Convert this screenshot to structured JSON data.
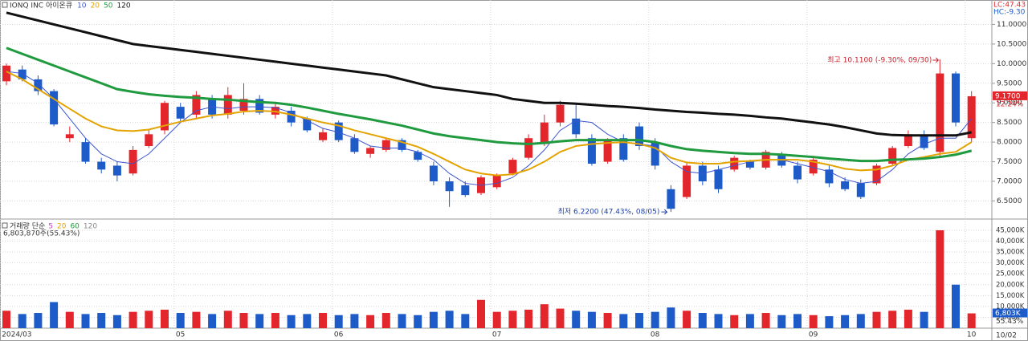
{
  "chart_data": [
    {
      "type": "candlestick",
      "title": "IONQ INC  아이온큐",
      "lc": "LC:47.43",
      "hc": "HC:-9.30",
      "up_color": "#e3262c",
      "down_color": "#1d5bc9",
      "categories": [
        "2024/03",
        null,
        null,
        null,
        null,
        null,
        null,
        null,
        null,
        null,
        null,
        "05",
        null,
        null,
        null,
        null,
        null,
        null,
        null,
        null,
        null,
        "06",
        null,
        null,
        null,
        null,
        null,
        null,
        null,
        null,
        null,
        "07",
        null,
        null,
        null,
        null,
        null,
        null,
        null,
        null,
        null,
        "08",
        null,
        null,
        null,
        null,
        null,
        null,
        null,
        null,
        null,
        "09",
        null,
        null,
        null,
        null,
        null,
        null,
        null,
        null,
        null,
        "10"
      ],
      "open": [
        9.55,
        9.85,
        9.6,
        9.3,
        8.1,
        8.0,
        7.5,
        7.4,
        7.2,
        7.9,
        8.3,
        8.9,
        8.7,
        9.1,
        8.7,
        8.8,
        9.1,
        8.7,
        8.8,
        8.6,
        8.05,
        8.5,
        8.1,
        7.7,
        7.8,
        8.05,
        7.75,
        7.4,
        7.0,
        6.9,
        6.7,
        6.85,
        7.2,
        7.6,
        7.95,
        8.5,
        8.6,
        8.1,
        7.5,
        8.1,
        8.4,
        8.0,
        6.8,
        6.6,
        7.4,
        7.3,
        7.3,
        7.5,
        7.35,
        7.7,
        7.4,
        7.2,
        7.3,
        7.0,
        6.95,
        6.95,
        7.45,
        7.9,
        8.15,
        7.75,
        9.75,
        8.1
      ],
      "high": [
        10.0,
        9.95,
        9.7,
        9.35,
        8.4,
        8.1,
        7.6,
        7.5,
        7.9,
        8.3,
        9.05,
        9.0,
        9.3,
        9.2,
        9.4,
        9.5,
        9.2,
        9.0,
        8.9,
        8.65,
        8.35,
        8.55,
        8.2,
        7.9,
        8.1,
        8.1,
        7.8,
        7.5,
        7.1,
        7.0,
        7.15,
        7.2,
        7.6,
        8.2,
        8.7,
        9.05,
        8.95,
        8.2,
        8.1,
        8.2,
        8.5,
        8.1,
        6.9,
        7.5,
        7.5,
        7.4,
        7.65,
        7.55,
        7.8,
        7.75,
        7.5,
        7.65,
        7.4,
        7.1,
        7.05,
        7.45,
        7.9,
        8.3,
        8.3,
        10.11,
        9.8,
        9.3
      ],
      "low": [
        9.45,
        9.55,
        9.2,
        8.4,
        8.0,
        7.45,
        7.2,
        7.0,
        7.15,
        7.85,
        8.2,
        8.5,
        8.6,
        8.6,
        8.6,
        8.7,
        8.7,
        8.6,
        8.4,
        8.25,
        8.0,
        8.0,
        7.7,
        7.6,
        7.75,
        7.75,
        7.5,
        6.9,
        6.35,
        6.6,
        6.65,
        6.8,
        7.15,
        7.55,
        7.9,
        8.4,
        8.1,
        7.4,
        7.45,
        7.5,
        7.8,
        7.3,
        6.22,
        6.55,
        6.9,
        6.7,
        7.25,
        7.3,
        7.3,
        7.35,
        6.95,
        7.15,
        6.85,
        6.75,
        6.55,
        6.9,
        7.4,
        7.85,
        7.8,
        7.6,
        8.4,
        8.0
      ],
      "close": [
        9.95,
        9.6,
        9.3,
        8.45,
        8.2,
        7.5,
        7.3,
        7.15,
        7.8,
        8.2,
        9.0,
        8.6,
        9.2,
        8.7,
        9.2,
        9.1,
        8.75,
        8.9,
        8.5,
        8.3,
        8.25,
        8.05,
        7.75,
        7.85,
        8.05,
        7.8,
        7.55,
        7.0,
        6.75,
        6.65,
        7.1,
        7.15,
        7.55,
        8.1,
        8.5,
        8.95,
        8.2,
        7.45,
        8.05,
        7.55,
        7.9,
        7.4,
        6.3,
        7.4,
        7.0,
        6.8,
        7.6,
        7.35,
        7.75,
        7.4,
        7.05,
        7.55,
        6.95,
        6.8,
        6.6,
        7.4,
        7.85,
        8.2,
        7.85,
        9.75,
        8.5,
        9.17
      ],
      "series": [
        {
          "name": "10",
          "color": "#3b55cf",
          "width": 1,
          "values": [
            9.8,
            9.75,
            9.5,
            9.1,
            8.6,
            8.1,
            7.7,
            7.5,
            7.45,
            7.7,
            8.1,
            8.5,
            8.8,
            8.9,
            8.85,
            8.9,
            8.9,
            8.88,
            8.75,
            8.55,
            8.35,
            8.25,
            8.1,
            7.9,
            7.85,
            7.85,
            7.75,
            7.55,
            7.2,
            6.95,
            6.9,
            6.95,
            7.1,
            7.4,
            7.8,
            8.3,
            8.55,
            8.5,
            8.2,
            8.0,
            7.95,
            7.9,
            7.5,
            7.25,
            7.2,
            7.3,
            7.4,
            7.5,
            7.55,
            7.55,
            7.45,
            7.35,
            7.25,
            7.05,
            6.95,
            7.0,
            7.3,
            7.7,
            7.95,
            8.1,
            8.1,
            8.6
          ]
        },
        {
          "name": "20",
          "color": "#e3a300",
          "width": 2,
          "values": [
            9.8,
            9.6,
            9.35,
            9.1,
            8.85,
            8.6,
            8.4,
            8.3,
            8.28,
            8.32,
            8.42,
            8.52,
            8.6,
            8.68,
            8.72,
            8.78,
            8.8,
            8.78,
            8.7,
            8.6,
            8.5,
            8.42,
            8.3,
            8.2,
            8.1,
            8.0,
            7.88,
            7.7,
            7.5,
            7.3,
            7.2,
            7.15,
            7.18,
            7.3,
            7.5,
            7.75,
            7.9,
            7.95,
            7.98,
            8.0,
            7.95,
            7.85,
            7.6,
            7.48,
            7.45,
            7.45,
            7.5,
            7.52,
            7.55,
            7.55,
            7.55,
            7.5,
            7.42,
            7.32,
            7.28,
            7.3,
            7.4,
            7.55,
            7.62,
            7.7,
            7.75,
            8.0
          ]
        },
        {
          "name": "50",
          "color": "#1f9a3e",
          "width": 3,
          "values": [
            10.4,
            10.25,
            10.1,
            9.95,
            9.8,
            9.65,
            9.5,
            9.35,
            9.28,
            9.22,
            9.18,
            9.15,
            9.13,
            9.1,
            9.08,
            9.05,
            9.02,
            9.0,
            8.95,
            8.88,
            8.8,
            8.72,
            8.65,
            8.58,
            8.5,
            8.42,
            8.32,
            8.22,
            8.15,
            8.1,
            8.05,
            8.0,
            7.97,
            7.95,
            7.98,
            8.02,
            8.05,
            8.05,
            8.05,
            8.05,
            8.05,
            8.0,
            7.9,
            7.82,
            7.78,
            7.75,
            7.72,
            7.7,
            7.7,
            7.68,
            7.65,
            7.62,
            7.58,
            7.55,
            7.52,
            7.52,
            7.55,
            7.56,
            7.58,
            7.62,
            7.68,
            7.78
          ]
        },
        {
          "name": "120",
          "color": "#111111",
          "width": 3,
          "values": [
            11.3,
            11.2,
            11.1,
            11.0,
            10.9,
            10.8,
            10.7,
            10.6,
            10.5,
            10.45,
            10.4,
            10.35,
            10.3,
            10.25,
            10.2,
            10.15,
            10.1,
            10.05,
            10.0,
            9.95,
            9.9,
            9.85,
            9.8,
            9.75,
            9.7,
            9.6,
            9.5,
            9.4,
            9.35,
            9.3,
            9.25,
            9.2,
            9.1,
            9.05,
            9.0,
            9.0,
            8.98,
            8.95,
            8.92,
            8.9,
            8.87,
            8.83,
            8.8,
            8.77,
            8.75,
            8.72,
            8.7,
            8.67,
            8.63,
            8.6,
            8.55,
            8.5,
            8.45,
            8.38,
            8.3,
            8.22,
            8.18,
            8.17,
            8.17,
            8.17,
            8.17,
            8.25
          ]
        }
      ],
      "ylim": [
        6.1,
        11.5
      ],
      "yticks": [
        {
          "value": 6.5,
          "label": "6.5000"
        },
        {
          "value": 7,
          "label": "7.0000"
        },
        {
          "value": 7.5,
          "label": "7.5000"
        },
        {
          "value": 8,
          "label": "8.0000"
        },
        {
          "value": 8.5,
          "label": "8.5000"
        },
        {
          "value": 9,
          "label": "9.0000"
        },
        {
          "value": 9.5,
          "label": "9.5000"
        },
        {
          "value": 10,
          "label": "10.0000"
        },
        {
          "value": 10.5,
          "label": "10.5000"
        },
        {
          "value": 11,
          "label": "11.0000"
        }
      ],
      "price_label": "9.1700",
      "change_label": "12.24%",
      "high_note": "최고 10.1100 (-9.30%, 09/30)",
      "low_note": "최저 6.2200 (47.43%, 08/05)",
      "date_label": "10/02"
    },
    {
      "type": "bar",
      "title": "거래량 단순",
      "subtitle": "6,803,870주(55.43%)",
      "ma_labels": [
        {
          "label": "5",
          "color": "#d040d0"
        },
        {
          "label": "20",
          "color": "#e3a300"
        },
        {
          "label": "60",
          "color": "#1f9a3e"
        },
        {
          "label": "120",
          "color": "#888888"
        }
      ],
      "values": [
        8000,
        6500,
        7000,
        12000,
        7500,
        6500,
        7000,
        6000,
        7500,
        8000,
        8500,
        7000,
        7500,
        6500,
        8000,
        7000,
        6500,
        7000,
        6000,
        6500,
        7000,
        6000,
        6500,
        6000,
        7000,
        6500,
        6000,
        7500,
        8000,
        6500,
        13000,
        7500,
        8000,
        8500,
        11000,
        9000,
        8000,
        7500,
        7000,
        6500,
        7000,
        7500,
        9500,
        8000,
        7000,
        6500,
        6000,
        6500,
        7000,
        6000,
        6500,
        6000,
        5500,
        6000,
        6500,
        7500,
        8000,
        8500,
        7500,
        45000,
        20000,
        6803
      ],
      "ylim": [
        0,
        48000
      ],
      "yticks": [
        {
          "value": 5000,
          "label": "5,000K"
        },
        {
          "value": 10000,
          "label": "10,000K"
        },
        {
          "value": 15000,
          "label": "15,000K"
        },
        {
          "value": 20000,
          "label": "20,000K"
        },
        {
          "value": 25000,
          "label": "25,000K"
        },
        {
          "value": 30000,
          "label": "30,000K"
        },
        {
          "value": 35000,
          "label": "35,000K"
        },
        {
          "value": 40000,
          "label": "40,000K"
        },
        {
          "value": 45000,
          "label": "45,000K"
        }
      ],
      "volume_label": "6,803K",
      "volume_change": "55.43%"
    }
  ]
}
